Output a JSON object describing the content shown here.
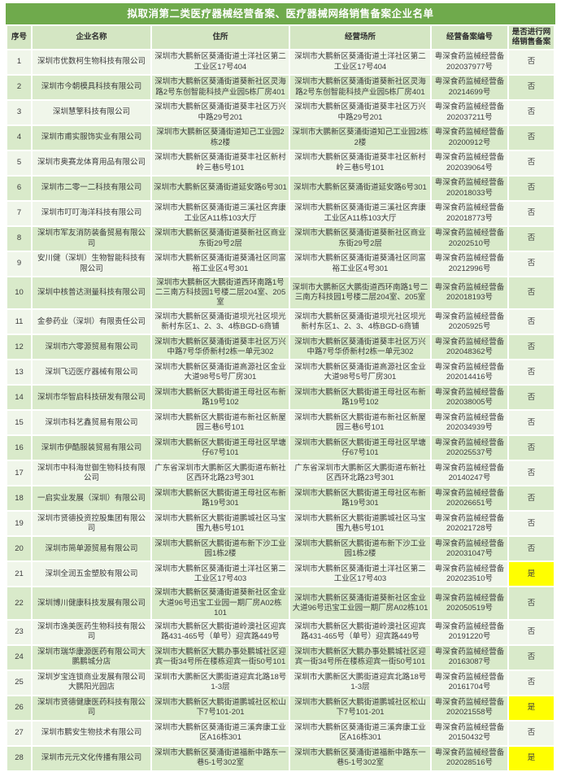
{
  "title": "拟取消第二类医疗器械经营备案、医疗器械网络销售备案企业名单",
  "colors": {
    "title_bar": "#6faa4c",
    "header_bg": "#d4e6c3",
    "row_odd": "#f0f6ea",
    "row_even": "#d9eaca",
    "highlight": "#ffff00",
    "text": "#3c3c3c"
  },
  "table": {
    "headers": [
      "序号",
      "企业名称",
      "住所",
      "经营场所",
      "经营备案编号",
      "是否进行网络销售备案"
    ],
    "highlight_value": "是",
    "rows": [
      {
        "no": "1",
        "name": "深圳市优数柯生物科技有限公司",
        "address": "深圳市大鹏新区葵涌街道土洋社区第二工业区17号404",
        "premises": "深圳市大鹏新区葵涌街道土洋社区第二工业区17号404",
        "filing_no": "粤深食药监械经营备202037977号",
        "online": "否"
      },
      {
        "no": "2",
        "name": "深圳市今朝模具科技有限公司",
        "address": "深圳市大鹏新区葵涌街道葵新社区灵海路2号东创智能科技产业园5栋厂房401",
        "premises": "深圳市大鹏新区葵涌街道葵新社区灵海路2号东创智能科技产业园5栋厂房401",
        "filing_no": "粤深食药监械经营备20214699号",
        "online": "否"
      },
      {
        "no": "3",
        "name": "深圳慧擎科技有限公司",
        "address": "深圳市大鹏新区葵涌街道葵丰社区万兴中路29号201",
        "premises": "深圳市大鹏新区葵涌街道葵丰社区万兴中路29号201",
        "filing_no": "粤深食药监械经营备202037211号",
        "online": "否"
      },
      {
        "no": "4",
        "name": "深圳市甫实服饰实业有限公司",
        "address": "深圳市大鹏新区葵涌街道知己工业园2栋2楼",
        "premises": "深圳市大鹏新区葵涌街道知己工业园2栋2楼",
        "filing_no": "粤深食药监械经营备20200912号",
        "online": "否"
      },
      {
        "no": "5",
        "name": "深圳市奥赛龙体育用品有限公司",
        "address": "深圳市大鹏新区葵涌街道葵丰社区新村岭三巷5号101",
        "premises": "深圳市大鹏新区葵涌街道葵丰社区新村岭三巷5号101",
        "filing_no": "粤深食药监械经营备202039064号",
        "online": "否"
      },
      {
        "no": "6",
        "name": "深圳市二零一二科技有限公司",
        "address": "深圳市大鹏新区葵涌街道延安路6号301",
        "premises": "深圳市大鹏新区葵涌街道延安路6号301",
        "filing_no": "粤深食药监械经营备202018033号",
        "online": "否"
      },
      {
        "no": "7",
        "name": "深圳市叮叮海洋科技有限公司",
        "address": "深圳市大鹏新区葵涌街道三溪社区奔康工业区A11栋103大厅",
        "premises": "深圳市大鹏新区葵涌街道三溪社区奔康工业区A11栋103大厅",
        "filing_no": "粤深食药监械经营备202018773号",
        "online": "否"
      },
      {
        "no": "8",
        "name": "深圳市军友消防装备贸易有限公司",
        "address": "深圳市大鹏新区葵涌街道葵新社区商业东街29号2层",
        "premises": "深圳市大鹏新区葵涌街道葵新社区商业东街29号2层",
        "filing_no": "粤深食药监械经营备20202510号",
        "online": "否"
      },
      {
        "no": "9",
        "name": "安川健（深圳）生物智能科技有限公司",
        "address": "深圳市大鹏新区葵涌街道葵涌社区同富裕工业区4号301",
        "premises": "深圳市大鹏新区葵涌街道葵涌社区同富裕工业区4号301",
        "filing_no": "粤深食药监械经营备20212996号",
        "online": "否"
      },
      {
        "no": "10",
        "name": "深圳中核普达测量科技有限公司",
        "address": "深圳市大鹏新区大鹏街道西环南路1号二三南方科技园1号楼二层204室、205室",
        "premises": "深圳市大鹏新区大鹏街道西环南路1号二三南方科技园1号楼二层204室、205室",
        "filing_no": "粤深食药监械经营备202018193号",
        "online": "否"
      },
      {
        "no": "11",
        "name": "金参药业（深圳）有限责任公司",
        "address": "深圳市大鹏新区葵涌街道坝光社区坝光新村东区1、2、3、4栋BGD-6商铺",
        "premises": "深圳市大鹏新区葵涌街道坝光社区坝光新村东区1、2、3、4栋BGD-6商铺",
        "filing_no": "粤深食药监械经营备20205925号",
        "online": "否"
      },
      {
        "no": "12",
        "name": "深圳市六零源贸易有限公司",
        "address": "深圳市大鹏新区葵涌街道葵丰社区万兴中路7号华侨新村2栋一单元302",
        "premises": "深圳市大鹏新区葵涌街道葵丰社区万兴中路7号华侨新村2栋一单元302",
        "filing_no": "粤深食药监械经营备202048362号",
        "online": "否"
      },
      {
        "no": "13",
        "name": "深圳飞迈医疗器械有限公司",
        "address": "深圳市大鹏新区葵涌街道高源社区金业大道98号5号厂房301",
        "premises": "深圳市大鹏新区葵涌街道高源社区金业大道98号5号厂房301",
        "filing_no": "粤深食药监械经营备202014416号",
        "online": "否"
      },
      {
        "no": "14",
        "name": "深圳市华智启科技研发有限公司",
        "address": "深圳市大鹏新区大鹏街道王母社区布新路19号102",
        "premises": "深圳市大鹏新区大鹏街道王母社区布新路19号102",
        "filing_no": "粤深食药监械经营备202038005号",
        "online": "否"
      },
      {
        "no": "15",
        "name": "深圳市科艺鑫贸易有限公司",
        "address": "深圳市大鹏新区大鹏街道布新社区新屋园三巷6号101",
        "premises": "深圳市大鹏新区大鹏街道布新社区新屋园三巷6号101",
        "filing_no": "粤深食药监械经营备202034939号",
        "online": "否"
      },
      {
        "no": "16",
        "name": "深圳市伊酷服装贸易有限公司",
        "address": "深圳市大鹏新区大鹏街道王母社区早塘仔67号101",
        "premises": "深圳市大鹏新区大鹏街道王母社区早塘仔67号101",
        "filing_no": "粤深食药监械经营备202025537号",
        "online": "否"
      },
      {
        "no": "17",
        "name": "深圳市中科海世御生物科技有限公司",
        "address": "广东省深圳市大鹏新区大鹏街道布新社区西环北路23号301",
        "premises": "广东省深圳市大鹏新区大鹏街道布新社区西环北路23号301",
        "filing_no": "粤深食药监械经营备20140247号",
        "online": "否"
      },
      {
        "no": "18",
        "name": "一启实业发展（深圳）有限公司",
        "address": "深圳市大鹏新区大鹏街道王母社区布新路19号301",
        "premises": "深圳市大鹏新区大鹏街道王母社区布新路19号301",
        "filing_no": "粤深食药监械经营备202026651号",
        "online": "否"
      },
      {
        "no": "19",
        "name": "深圳市贤德投资控股集团有限公司",
        "address": "深圳市大鹏新区大鹏街道鹏城社区马宝围九巷5号101",
        "premises": "深圳市大鹏新区大鹏街道鹏城社区马宝围九巷5号101",
        "filing_no": "粤深食药监械经营备202021728号",
        "online": "否"
      },
      {
        "no": "20",
        "name": "深圳市简单源贸易有限公司",
        "address": "深圳市大鹏新区大鹏街道布新下沙工业园1栋2楼",
        "premises": "深圳市大鹏新区大鹏街道布新下沙工业园1栋2楼",
        "filing_no": "粤深食药监械经营备202031047号",
        "online": "否"
      },
      {
        "no": "21",
        "name": "深圳全润五金塑胶有限公司",
        "address": "深圳市大鹏新区葵涌街道土洋社区第二工业区17号403",
        "premises": "深圳市大鹏新区葵涌街道土洋社区第二工业区17号403",
        "filing_no": "粤深食药监械经营备202023510号",
        "online": "是"
      },
      {
        "no": "22",
        "name": "深圳博川健康科技发展有限公司",
        "address": "深圳市大鹏新区葵涌街道葵新社区金业大道96号迅宝工业园一期厂房A02栋101",
        "premises": "深圳市大鹏新区葵涌街道葵新社区金业大道96号迅宝工业园一期厂房A02栋101",
        "filing_no": "粤深食药监械经营备202050519号",
        "online": "否"
      },
      {
        "no": "23",
        "name": "深圳市逸美医药生物科技有限公司",
        "address": "深圳市大鹏新区大鹏街道岭澳社区迎宾路431-465号（单号）迎宾路449号",
        "premises": "深圳市大鹏新区大鹏街道岭澳社区迎宾路431-465号（单号）迎宾路449号",
        "filing_no": "粤深食药监械经营备20191220号",
        "online": "否"
      },
      {
        "no": "24",
        "name": "深圳市瑞华康源医药有限公司大鹏鹏城分店",
        "address": "深圳市大鹏新区大鹏办事处鹏城社区迎宾一街34号所在楼栋迎宾一街50号101",
        "premises": "深圳市大鹏新区大鹏办事处鹏城社区迎宾一街34号所在楼栋迎宾一街50号101",
        "filing_no": "粤深食药监械经营备20163087号",
        "online": "否"
      },
      {
        "no": "25",
        "name": "深圳岁宝连锁商业发展有限公司大鹏阳光园店",
        "address": "深圳市大鹏新区大鹏街道迎宾北路18号1-3层",
        "premises": "深圳市大鹏新区大鹏街道迎宾北路18号1-3层",
        "filing_no": "粤深食药监械经营备20161704号",
        "online": "否"
      },
      {
        "no": "26",
        "name": "深圳市贤德健康医药科技有限公司",
        "address": "深圳市大鹏新区大鹏街道鹏城社区松山下7号101-201",
        "premises": "深圳市大鹏新区大鹏街道鹏城社区松山下7号101-201",
        "filing_no": "粤深食药监械经营备202021558号",
        "online": "是"
      },
      {
        "no": "27",
        "name": "深圳市鹏安生物技术有限公司",
        "address": "深圳市大鹏新区葵涌街道三溪奔康工业区A16栋301",
        "premises": "深圳市大鹏新区葵涌街道三溪奔康工业区A16栋301",
        "filing_no": "粤深食药监械经营备20150432号",
        "online": "否"
      },
      {
        "no": "28",
        "name": "深圳市元元文化传播有限公司",
        "address": "深圳市大鹏新区葵涌街道福新中路东一巷5-1号302室",
        "premises": "深圳市大鹏新区葵涌街道福新中路东一巷5-1号302室",
        "filing_no": "粤深食药监械经营备202028516号",
        "online": "是"
      }
    ]
  }
}
